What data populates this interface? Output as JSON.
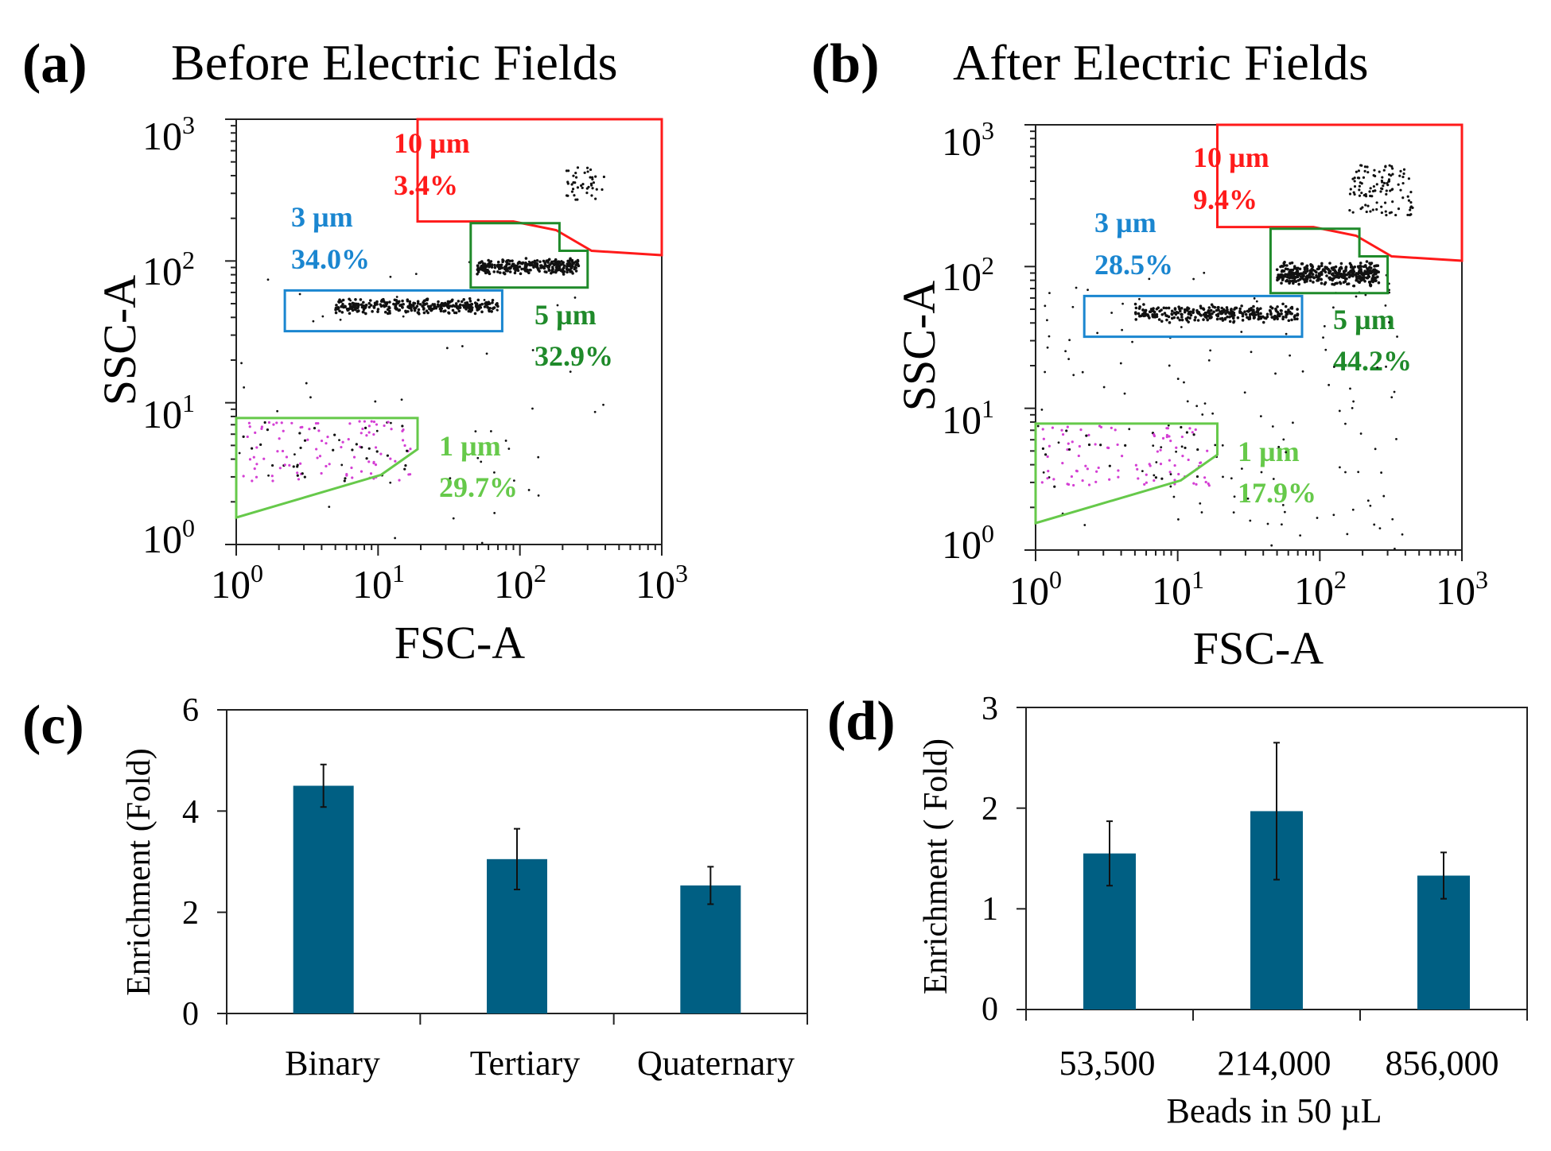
{
  "colors": {
    "red_gate": "#ff1a1a",
    "blue_gate": "#1a86d0",
    "dark_green_gate": "#1f8a2a",
    "light_green_gate": "#66c94a",
    "bar_fill": "#005f83",
    "dots": "#111111",
    "magenta_dots": "#d43fd4"
  },
  "chart_data": [
    {
      "panel": "(a)",
      "type": "scatter",
      "title": "Before Electric Fields",
      "xlabel": "FSC-A",
      "ylabel": "SSC-A",
      "xscale": "log",
      "yscale": "log",
      "xlim": [
        1,
        1000
      ],
      "ylim": [
        1,
        1000
      ],
      "xticks": [
        {
          "base": "10",
          "exp": "0"
        },
        {
          "base": "10",
          "exp": "1"
        },
        {
          "base": "10",
          "exp": "2"
        },
        {
          "base": "10",
          "exp": "3"
        }
      ],
      "yticks": [
        {
          "base": "10",
          "exp": "0"
        },
        {
          "base": "10",
          "exp": "1"
        },
        {
          "base": "10",
          "exp": "2"
        },
        {
          "base": "10",
          "exp": "3"
        }
      ],
      "gates": [
        {
          "size": "10 µm",
          "percent": "3.4%",
          "color": "red",
          "polygon": [
            [
              19,
              1000
            ],
            [
              1000,
              1000
            ],
            [
              1000,
              110
            ],
            [
              320,
              118
            ],
            [
              180,
              165
            ],
            [
              90,
              190
            ],
            [
              19,
              190
            ]
          ],
          "cluster": {
            "x": [
              200,
              400
            ],
            "y": [
              270,
              460
            ],
            "count": 42,
            "dense": false
          }
        },
        {
          "size": "5 µm",
          "percent": "32.9%",
          "color": "darkgreen",
          "polygon": [
            [
              45,
              185
            ],
            [
              190,
              185
            ],
            [
              190,
              118
            ],
            [
              300,
              118
            ],
            [
              300,
              65
            ],
            [
              45,
              65
            ]
          ],
          "cluster": {
            "x": [
              50,
              260
            ],
            "y": [
              80,
              105
            ],
            "count": 300,
            "dense": true
          }
        },
        {
          "size": "3 µm",
          "percent": "34.0%",
          "color": "blue",
          "polygon": [
            [
              2.2,
              62
            ],
            [
              75,
              62
            ],
            [
              75,
              32
            ],
            [
              2.2,
              32
            ]
          ],
          "cluster": {
            "x": [
              5,
              70
            ],
            "y": [
              42,
              55
            ],
            "count": 320,
            "dense": true
          }
        },
        {
          "size": "1 µm",
          "percent": "29.7%",
          "color": "lightgreen",
          "polygon": [
            [
              1,
              7.8
            ],
            [
              19,
              7.8
            ],
            [
              19,
              4.7
            ],
            [
              10.5,
              3.1
            ],
            [
              1,
              1.55
            ]
          ],
          "cluster": {
            "x": [
              1.1,
              17
            ],
            "y": [
              2.8,
              7.5
            ],
            "count": 130,
            "dense": false
          }
        }
      ],
      "scatter_noise": 60
    },
    {
      "panel": "(b)",
      "type": "scatter",
      "title": "After Electric Fields",
      "xlabel": "FSC-A",
      "ylabel": "SSC-A",
      "xscale": "log",
      "yscale": "log",
      "xlim": [
        1,
        1000
      ],
      "ylim": [
        1,
        1000
      ],
      "xticks": [
        {
          "base": "10",
          "exp": "0"
        },
        {
          "base": "10",
          "exp": "1"
        },
        {
          "base": "10",
          "exp": "2"
        },
        {
          "base": "10",
          "exp": "3"
        }
      ],
      "yticks": [
        {
          "base": "10",
          "exp": "0"
        },
        {
          "base": "10",
          "exp": "1"
        },
        {
          "base": "10",
          "exp": "2"
        },
        {
          "base": "10",
          "exp": "3"
        }
      ],
      "gates": [
        {
          "size": "10 µm",
          "percent": "9.4%",
          "color": "red",
          "polygon": [
            [
              19,
              1000
            ],
            [
              1000,
              1000
            ],
            [
              1000,
              110
            ],
            [
              320,
              118
            ],
            [
              180,
              165
            ],
            [
              90,
              190
            ],
            [
              19,
              190
            ]
          ],
          "cluster": {
            "x": [
              160,
              450
            ],
            "y": [
              230,
              520
            ],
            "count": 110,
            "dense": false
          }
        },
        {
          "size": "5 µm",
          "percent": "44.2%",
          "color": "darkgreen",
          "polygon": [
            [
              45,
              185
            ],
            [
              190,
              185
            ],
            [
              190,
              118
            ],
            [
              300,
              118
            ],
            [
              300,
              65
            ],
            [
              45,
              65
            ]
          ],
          "cluster": {
            "x": [
              50,
              260
            ],
            "y": [
              72,
              110
            ],
            "count": 420,
            "dense": true
          }
        },
        {
          "size": "3 µm",
          "percent": "28.5%",
          "color": "blue",
          "polygon": [
            [
              2.2,
              62
            ],
            [
              75,
              62
            ],
            [
              75,
              32
            ],
            [
              2.2,
              32
            ]
          ],
          "cluster": {
            "x": [
              5,
              70
            ],
            "y": [
              40,
              55
            ],
            "count": 300,
            "dense": true
          }
        },
        {
          "size": "1 µm",
          "percent": "17.9%",
          "color": "lightgreen",
          "polygon": [
            [
              1,
              7.8
            ],
            [
              19,
              7.8
            ],
            [
              19,
              4.7
            ],
            [
              10.5,
              3.1
            ],
            [
              1,
              1.55
            ]
          ],
          "cluster": {
            "x": [
              1.1,
              17
            ],
            "y": [
              2.8,
              7.5
            ],
            "count": 110,
            "dense": false
          }
        }
      ],
      "scatter_noise": 140
    },
    {
      "panel": "(c)",
      "type": "bar",
      "categories": [
        "Binary",
        "Tertiary",
        "Quaternary"
      ],
      "values": [
        4.5,
        3.05,
        2.53
      ],
      "errors": [
        0.42,
        0.6,
        0.37
      ],
      "ylabel": "Enrichment  (Fold)",
      "xlabel": "",
      "ylim": [
        0,
        6
      ],
      "yticks": [
        "0",
        "2",
        "4",
        "6"
      ]
    },
    {
      "panel": "(d)",
      "type": "bar",
      "categories": [
        "53,500",
        "214,000",
        "856,000"
      ],
      "values": [
        1.55,
        1.97,
        1.33
      ],
      "errors": [
        0.32,
        0.68,
        0.23
      ],
      "ylabel": "Enrichment ( Fold)",
      "xlabel": "Beads in 50 µL",
      "ylim": [
        0,
        3
      ],
      "yticks": [
        "0",
        "1",
        "2",
        "3"
      ]
    }
  ]
}
